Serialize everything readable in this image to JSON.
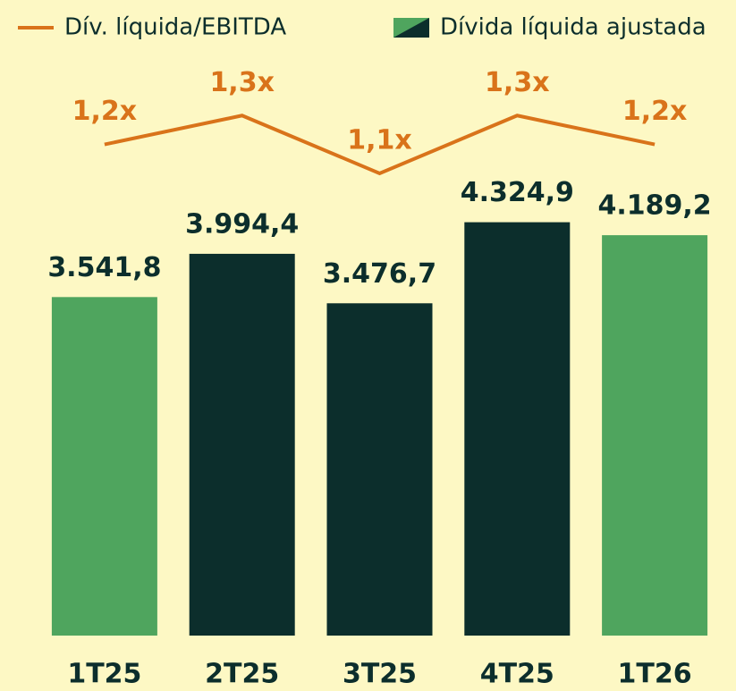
{
  "chart_data": {
    "type": "bar-line",
    "categories": [
      "1T25",
      "2T25",
      "3T25",
      "4T25",
      "1T26"
    ],
    "ylim": [
      0,
      6650
    ],
    "y2lim": [
      -0.5,
      1.7
    ],
    "series": [
      {
        "name": "Dívida líquida ajustada",
        "type": "bar",
        "colors": [
          "#4fa55e",
          "#0c2e2c",
          "#0c2e2c",
          "#0c2e2c",
          "#4fa55e"
        ],
        "values": [
          3541.8,
          3994.4,
          3476.7,
          4324.9,
          4189.2
        ],
        "value_labels": [
          "3.541,8",
          "3.994,4",
          "3.476,7",
          "4.324,9",
          "4.189,2"
        ]
      },
      {
        "name": "Dív. líquida/EBITDA",
        "type": "line",
        "axis": "y2",
        "color": "#d9731a",
        "values": [
          1.2,
          1.3,
          1.1,
          1.3,
          1.2
        ],
        "value_labels": [
          "1,2x",
          "1,3x",
          "1,1x",
          "1,3x",
          "1,2x"
        ]
      }
    ]
  }
}
